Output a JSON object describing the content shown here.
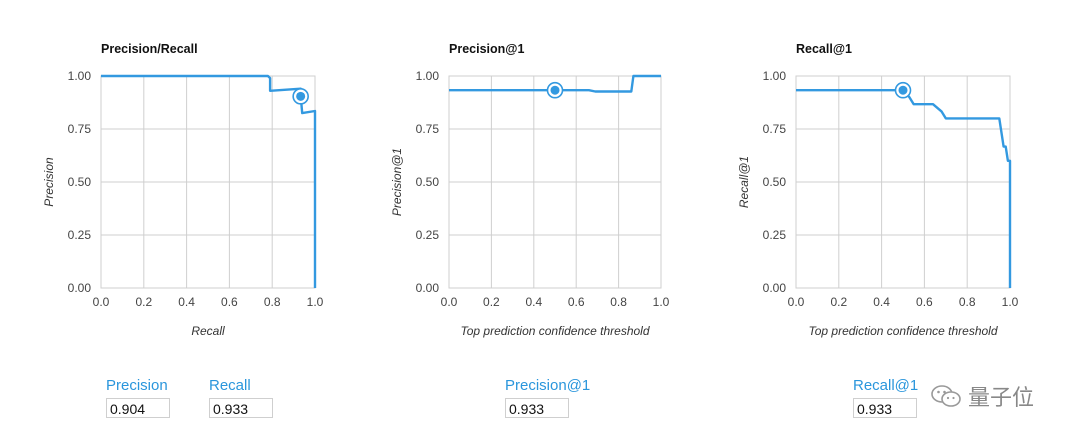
{
  "chart_data": [
    {
      "type": "line",
      "title": "Precision/Recall",
      "xlabel": "Recall",
      "ylabel": "Precision",
      "xlim": [
        0,
        1
      ],
      "ylim": [
        0,
        1
      ],
      "x_ticks": [
        "0.0",
        "0.2",
        "0.4",
        "0.6",
        "0.8",
        "1.0"
      ],
      "y_ticks": [
        "1.00",
        "0.75",
        "0.50",
        "0.25",
        "0.00"
      ],
      "grid": true,
      "series": [
        {
          "x": [
            0.0,
            0.78,
            0.79,
            0.79,
            0.933,
            0.933,
            0.94,
            0.94,
            1.0,
            1.0
          ],
          "y": [
            1.0,
            1.0,
            0.99,
            0.93,
            0.94,
            0.905,
            0.825,
            0.825,
            0.835,
            0.0
          ]
        }
      ],
      "marker": {
        "x": 0.933,
        "y": 0.904
      }
    },
    {
      "type": "line",
      "title": "Precision@1",
      "xlabel": "Top prediction confidence threshold",
      "ylabel": "Precision@1",
      "xlim": [
        0,
        1
      ],
      "ylim": [
        0,
        1
      ],
      "x_ticks": [
        "0.0",
        "0.2",
        "0.4",
        "0.6",
        "0.8",
        "1.0"
      ],
      "y_ticks": [
        "1.00",
        "0.75",
        "0.50",
        "0.25",
        "0.00"
      ],
      "grid": true,
      "series": [
        {
          "x": [
            0.0,
            0.66,
            0.69,
            0.85,
            0.86,
            0.87,
            1.0
          ],
          "y": [
            0.933,
            0.933,
            0.927,
            0.927,
            0.927,
            1.0,
            1.0
          ]
        }
      ],
      "marker": {
        "x": 0.5,
        "y": 0.933
      }
    },
    {
      "type": "line",
      "title": "Recall@1",
      "xlabel": "Top prediction confidence threshold",
      "ylabel": "Recall@1",
      "xlim": [
        0,
        1
      ],
      "ylim": [
        0,
        1
      ],
      "x_ticks": [
        "0.0",
        "0.2",
        "0.4",
        "0.6",
        "0.8",
        "1.0"
      ],
      "y_ticks": [
        "1.00",
        "0.75",
        "0.50",
        "0.25",
        "0.00"
      ],
      "grid": true,
      "series": [
        {
          "x": [
            0.0,
            0.5,
            0.53,
            0.55,
            0.64,
            0.68,
            0.7,
            0.95,
            0.97,
            0.98,
            0.99,
            1.0,
            1.0
          ],
          "y": [
            0.933,
            0.933,
            0.9,
            0.867,
            0.867,
            0.833,
            0.8,
            0.8,
            0.667,
            0.667,
            0.6,
            0.6,
            0.0
          ]
        }
      ],
      "marker": {
        "x": 0.5,
        "y": 0.933
      }
    }
  ],
  "metrics": {
    "precision_label": "Precision",
    "precision_value": "0.904",
    "recall_label": "Recall",
    "recall_value": "0.933",
    "precision_at1_label": "Precision@1",
    "precision_at1_value": "0.933",
    "recall_at1_label": "Recall@1",
    "recall_at1_value": "0.933"
  },
  "watermark": {
    "text": "量子位"
  },
  "colors": {
    "series": "#3399e0",
    "label": "#2a96dc",
    "grid": "#cfcfcf"
  }
}
